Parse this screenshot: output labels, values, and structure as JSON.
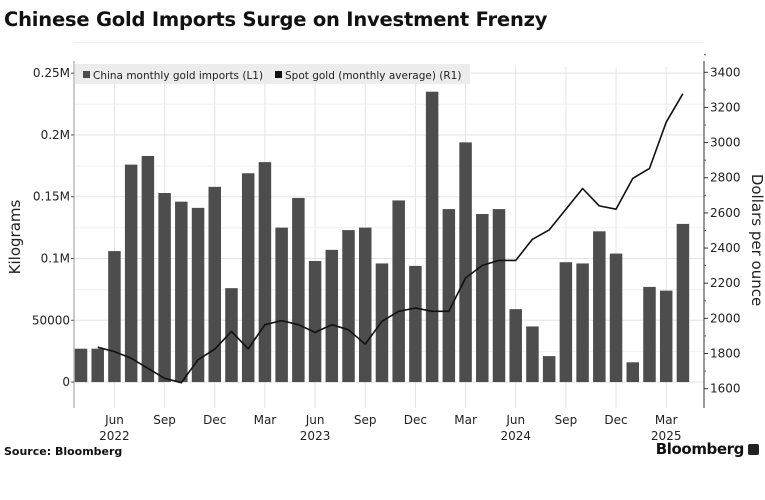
{
  "title": "Chinese Gold Imports Surge on Investment Frenzy",
  "source": "Source: Bloomberg",
  "brand": "Bloomberg",
  "chart_data": {
    "type": "bar+line",
    "title": "Chinese Gold Imports Surge on Investment Frenzy",
    "x": [
      "2022-04",
      "2022-05",
      "2022-06",
      "2022-07",
      "2022-08",
      "2022-09",
      "2022-10",
      "2022-11",
      "2022-12",
      "2023-01",
      "2023-02",
      "2023-03",
      "2023-04",
      "2023-05",
      "2023-06",
      "2023-07",
      "2023-08",
      "2023-09",
      "2023-10",
      "2023-11",
      "2023-12",
      "2024-01",
      "2024-02",
      "2024-03",
      "2024-04",
      "2024-05",
      "2024-06",
      "2024-07",
      "2024-08",
      "2024-09",
      "2024-10",
      "2024-11",
      "2024-12",
      "2025-01",
      "2025-02",
      "2025-03",
      "2025-04"
    ],
    "x_tick_labels": [
      {
        "month": "2022-06",
        "label": "Jun",
        "year": "2022"
      },
      {
        "month": "2022-09",
        "label": "Sep"
      },
      {
        "month": "2022-12",
        "label": "Dec"
      },
      {
        "month": "2023-03",
        "label": "Mar"
      },
      {
        "month": "2023-06",
        "label": "Jun",
        "year": "2023"
      },
      {
        "month": "2023-09",
        "label": "Sep"
      },
      {
        "month": "2023-12",
        "label": "Dec"
      },
      {
        "month": "2024-03",
        "label": "Mar"
      },
      {
        "month": "2024-06",
        "label": "Jun",
        "year": "2024"
      },
      {
        "month": "2024-09",
        "label": "Sep"
      },
      {
        "month": "2024-12",
        "label": "Dec"
      },
      {
        "month": "2025-03",
        "label": "Mar",
        "year": "2025"
      }
    ],
    "series": [
      {
        "name": "China monthly gold imports (L1)",
        "type": "bar",
        "axis": "left",
        "color": "#4d4d4d",
        "values": [
          27000,
          27000,
          106000,
          176000,
          183000,
          153000,
          146000,
          141000,
          158000,
          76000,
          169000,
          178000,
          125000,
          149000,
          98000,
          107000,
          123000,
          125000,
          96000,
          147000,
          94000,
          235000,
          140000,
          194000,
          136000,
          140000,
          59000,
          45000,
          21000,
          97000,
          96000,
          122000,
          104000,
          16000,
          77000,
          74000,
          128000
        ]
      },
      {
        "name": "Spot gold (monthly average) (R1)",
        "type": "line",
        "axis": "right",
        "color": "#111111",
        "values": [
          null,
          1836,
          1811,
          1773,
          1716,
          1659,
          1634,
          1764,
          1825,
          1926,
          1827,
          1964,
          1987,
          1964,
          1920,
          1964,
          1935,
          1853,
          1983,
          2040,
          2059,
          2040,
          2040,
          2230,
          2301,
          2330,
          2330,
          2450,
          2503,
          2621,
          2739,
          2640,
          2621,
          2796,
          2853,
          3116,
          3278
        ]
      }
    ],
    "left_axis": {
      "label": "Kilograms",
      "ylim": [
        -21000,
        255000
      ],
      "ticks": [
        {
          "v": 0,
          "t": "0"
        },
        {
          "v": 50000,
          "t": "50000"
        },
        {
          "v": 100000,
          "t": "0.1M"
        },
        {
          "v": 150000,
          "t": "0.15M"
        },
        {
          "v": 200000,
          "t": "0.2M"
        },
        {
          "v": 250000,
          "t": "0.25M"
        }
      ]
    },
    "right_axis": {
      "label": "Dollars per ounce",
      "ylim": [
        1490,
        3430
      ],
      "ticks": [
        {
          "v": 1600,
          "t": "1600"
        },
        {
          "v": 1800,
          "t": "1800"
        },
        {
          "v": 2000,
          "t": "2000"
        },
        {
          "v": 2200,
          "t": "2200"
        },
        {
          "v": 2400,
          "t": "2400"
        },
        {
          "v": 2600,
          "t": "2600"
        },
        {
          "v": 2800,
          "t": "2800"
        },
        {
          "v": 3000,
          "t": "3000"
        },
        {
          "v": 3200,
          "t": "3200"
        },
        {
          "v": 3400,
          "t": "3400"
        }
      ]
    },
    "legend_position": "top-left",
    "grid": true
  }
}
